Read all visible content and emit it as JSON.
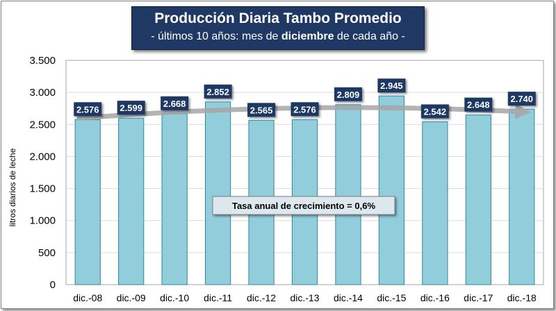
{
  "chart_data": {
    "type": "bar",
    "title": "Producción Diaria Tambo Promedio",
    "subtitle": {
      "prefix": "- últimos 10 años: mes de ",
      "bold": "diciembre",
      "suffix": " de cada año -"
    },
    "ylabel": "litros diarios de leche",
    "xlabel": "",
    "categories": [
      "dic.-08",
      "dic.-09",
      "dic.-10",
      "dic.-11",
      "dic.-12",
      "dic.-13",
      "dic.-14",
      "dic.-15",
      "dic.-16",
      "dic.-17",
      "dic.-18"
    ],
    "values": [
      2576,
      2599,
      2668,
      2852,
      2565,
      2576,
      2809,
      2945,
      2542,
      2648,
      2740
    ],
    "data_labels": [
      "2.576",
      "2.599",
      "2.668",
      "2.852",
      "2.565",
      "2.576",
      "2.809",
      "2.945",
      "2.542",
      "2.648",
      "2.740"
    ],
    "y_ticks": [
      0,
      500,
      1000,
      1500,
      2000,
      2500,
      3000,
      3500
    ],
    "y_tick_labels": [
      "0",
      "500",
      "1.000",
      "1.500",
      "2.000",
      "2.500",
      "3.000",
      "3.500"
    ],
    "ylim": [
      0,
      3500
    ],
    "grid": true,
    "trend": {
      "start": 2576,
      "end": 2740,
      "style": "arrow"
    },
    "annotation": "Tasa anual de crecimiento = 0,6%",
    "colors": {
      "bar_fill": "#92cddc",
      "bar_stroke": "#31859c",
      "label_bg": "#1f3864",
      "label_text": "#ffffff",
      "trend": "#a6a6a6",
      "grid": "#d9d9d9",
      "plot_border": "#a6a6a6",
      "title_bg": "#1f3864"
    }
  }
}
